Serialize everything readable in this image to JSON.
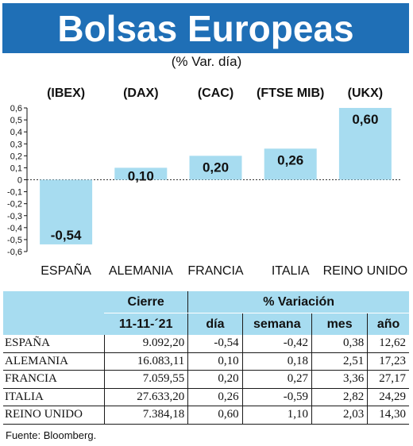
{
  "header": {
    "title": "Bolsas Europeas",
    "subtitle": "(% Var. día)"
  },
  "colors": {
    "title_bg": "#1f6fb6",
    "bar": "#a7dcf0",
    "header_bg": "#a7dcf0"
  },
  "chart_data": {
    "type": "bar",
    "categories": [
      "ESPAÑA",
      "ALEMANIA",
      "FRANCIA",
      "ITALIA",
      "REINO UNIDO"
    ],
    "index_codes": [
      "(IBEX)",
      "(DAX)",
      "(CAC)",
      "(FTSE MIB)",
      "(UKX)"
    ],
    "values": [
      -0.54,
      0.1,
      0.2,
      0.26,
      0.6
    ],
    "value_labels": [
      "-0,54",
      "0,10",
      "0,20",
      "0,26",
      "0,60"
    ],
    "ylim": [
      -0.6,
      0.6
    ],
    "yticks": [
      0.6,
      0.5,
      0.4,
      0.3,
      0.2,
      0.1,
      0,
      -0.1,
      -0.2,
      -0.3,
      -0.4,
      -0.5,
      -0.6
    ],
    "ytick_labels": [
      "0,6",
      "0,5",
      "0,4",
      "0,3",
      "0,2",
      "0,1",
      "0",
      "-0,1",
      "-0,2",
      "-0,3",
      "-0,4",
      "-0,5",
      "-0,6"
    ],
    "grid": false,
    "legend": "none"
  },
  "table": {
    "col_group_cierre": "Cierre",
    "col_group_variacion": "% Variación",
    "date": "11-11-´21",
    "cols": [
      "día",
      "semana",
      "mes",
      "año"
    ],
    "rows": [
      {
        "name": "ESPAÑA",
        "cierre": "9.092,20",
        "dia": "-0,54",
        "semana": "-0,42",
        "mes": "0,38",
        "ano": "12,62"
      },
      {
        "name": "ALEMANIA",
        "cierre": "16.083,11",
        "dia": "0,10",
        "semana": "0,18",
        "mes": "2,51",
        "ano": "17,23"
      },
      {
        "name": "FRANCIA",
        "cierre": "7.059,55",
        "dia": "0,20",
        "semana": "0,27",
        "mes": "3,36",
        "ano": "27,17"
      },
      {
        "name": "ITALIA",
        "cierre": "27.633,20",
        "dia": "0,26",
        "semana": "-0,59",
        "mes": "2,82",
        "ano": "24,29"
      },
      {
        "name": "REINO UNIDO",
        "cierre": "7.384,18",
        "dia": "0,60",
        "semana": "1,10",
        "mes": "2,03",
        "ano": "14,30"
      }
    ]
  },
  "source": "Fuente: Bloomberg."
}
